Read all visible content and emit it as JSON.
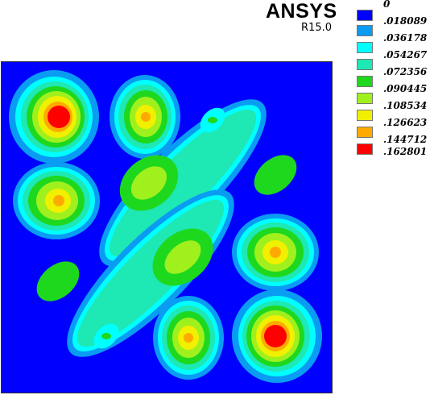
{
  "header": {
    "brand_name": "ANSYS",
    "release": "R15.0"
  },
  "legend": {
    "levels": [
      {
        "label": "0",
        "color": "#0000ff"
      },
      {
        "label": ".018089",
        "color": "#0a9cf2"
      },
      {
        "label": ".036178",
        "color": "#00ffff"
      },
      {
        "label": ".054267",
        "color": "#1ee8b4"
      },
      {
        "label": ".072356",
        "color": "#1ed81e"
      },
      {
        "label": ".090445",
        "color": "#a0f01e"
      },
      {
        "label": ".108534",
        "color": "#f0f000"
      },
      {
        "label": ".126623",
        "color": "#ffaa00"
      },
      {
        "label": ".144712",
        "color": "#ff0000"
      },
      {
        "label": ".162801",
        "color": "#ff0000"
      }
    ]
  }
}
